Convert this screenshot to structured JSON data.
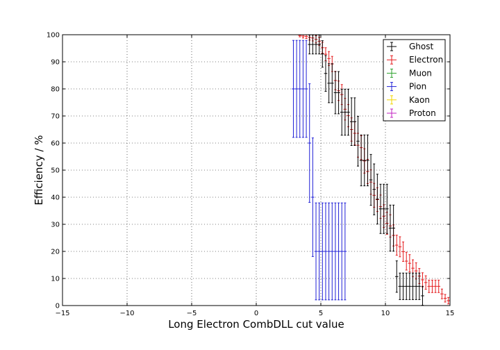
{
  "chart_data": {
    "type": "scatter",
    "title": "",
    "xlabel": "Long Electron CombDLL cut value",
    "ylabel": "Efficiency / %",
    "xlim": [
      -15,
      15
    ],
    "ylim": [
      0,
      100
    ],
    "xticks": [
      -15,
      -10,
      -5,
      0,
      5,
      10,
      15
    ],
    "xtick_labels": [
      "−15",
      "−10",
      "−5",
      "0",
      "5",
      "10",
      "15"
    ],
    "yticks": [
      0,
      10,
      20,
      30,
      40,
      50,
      60,
      70,
      80,
      90,
      100
    ],
    "ytick_labels": [
      "0",
      "10",
      "20",
      "30",
      "40",
      "50",
      "60",
      "70",
      "80",
      "90",
      "100"
    ],
    "grid": true,
    "legend_position": "top-right",
    "bin_width": 0.25,
    "series": [
      {
        "name": "Ghost",
        "color": "#000000",
        "x": [
          -14.875,
          -14.375,
          -13.875,
          -13.375,
          -12.875,
          -12.375,
          -11.875,
          -11.375,
          -10.875,
          -10.375,
          -9.875,
          -9.375,
          -8.875,
          -8.375,
          -7.875,
          -7.375,
          -6.875,
          -6.375,
          -5.875,
          -5.375,
          -4.875,
          -4.375,
          -3.875,
          -3.375,
          -2.875,
          -2.375,
          -1.875,
          -1.375,
          -0.875,
          -0.375,
          0.125,
          0.625,
          1.125,
          1.625,
          2.125,
          2.625,
          3.125,
          3.625,
          4.125,
          4.375,
          4.625,
          4.875,
          5.125,
          5.375,
          5.625,
          5.875,
          6.125,
          6.375,
          6.625,
          6.875,
          7.125,
          7.375,
          7.625,
          7.875,
          8.125,
          8.375,
          8.625,
          8.875,
          9.125,
          9.375,
          9.625,
          9.875,
          10.125,
          10.375,
          10.625,
          10.875,
          11.125,
          11.375,
          11.625,
          11.875,
          12.125,
          12.375,
          12.625,
          12.875,
          13.125
        ],
        "y": [
          100,
          100,
          100,
          100,
          100,
          100,
          100,
          100,
          100,
          100,
          100,
          100,
          100,
          100,
          100,
          100,
          100,
          100,
          100,
          100,
          100,
          100,
          100,
          100,
          100,
          100,
          100,
          100,
          100,
          100,
          100,
          100,
          100,
          100,
          100,
          100,
          100,
          100,
          96.4,
          96.4,
          96.4,
          96.4,
          92.9,
          85.7,
          82.1,
          82.1,
          78.6,
          78.6,
          71.4,
          71.4,
          71.4,
          67.9,
          67.9,
          60.7,
          53.6,
          53.6,
          53.6,
          46.4,
          42.9,
          39.3,
          35.7,
          35.7,
          35.7,
          28.6,
          28.6,
          10.7,
          7.1,
          7.1,
          7.1,
          7.1,
          7.1,
          7.1,
          7.1,
          3.6,
          0
        ],
        "err": [
          0,
          0,
          0,
          0,
          0,
          0,
          0,
          0,
          0,
          0,
          0,
          0,
          0,
          0,
          0,
          0,
          0,
          0,
          0,
          0,
          0,
          0,
          0,
          0,
          0,
          0,
          0,
          0,
          0,
          0,
          0,
          0,
          0,
          0,
          0,
          0,
          0,
          0,
          3.5,
          3.5,
          3.5,
          3.5,
          4.9,
          6.6,
          7.2,
          7.2,
          7.8,
          7.8,
          8.5,
          8.5,
          8.5,
          8.8,
          8.8,
          9.2,
          9.4,
          9.4,
          9.4,
          9.4,
          9.4,
          9.2,
          9.1,
          9.1,
          9.1,
          8.5,
          8.5,
          5.8,
          4.9,
          4.9,
          4.9,
          4.9,
          4.9,
          4.9,
          4.9,
          3.5,
          0
        ]
      },
      {
        "name": "Electron",
        "color": "#e41a1c",
        "x": [
          -14.875,
          -14.375,
          -13.875,
          -13.375,
          -12.875,
          -12.375,
          -11.875,
          -11.375,
          -10.875,
          -10.375,
          -9.875,
          -9.375,
          -8.875,
          -8.375,
          -7.875,
          -7.375,
          -6.875,
          -6.375,
          -5.875,
          -5.375,
          -4.875,
          -4.375,
          -3.875,
          -3.375,
          -2.875,
          -2.375,
          -1.875,
          -1.375,
          -0.875,
          -0.375,
          0.125,
          0.625,
          1.125,
          1.625,
          2.125,
          2.625,
          2.875,
          3.125,
          3.375,
          3.625,
          3.875,
          4.125,
          4.375,
          4.625,
          4.875,
          5.125,
          5.375,
          5.625,
          5.875,
          6.125,
          6.375,
          6.625,
          6.875,
          7.125,
          7.375,
          7.625,
          7.875,
          8.125,
          8.375,
          8.625,
          8.875,
          9.125,
          9.375,
          9.625,
          9.875,
          10.125,
          10.375,
          10.625,
          10.875,
          11.125,
          11.375,
          11.625,
          11.875,
          12.125,
          12.375,
          12.625,
          12.875,
          13.125,
          13.375,
          13.625,
          13.875,
          14.125,
          14.375,
          14.625,
          14.875
        ],
        "y": [
          100,
          100,
          100,
          100,
          100,
          100,
          100,
          100,
          100,
          100,
          100,
          100,
          100,
          100,
          100,
          100,
          100,
          100,
          100,
          100,
          100,
          100,
          100,
          100,
          100,
          100,
          100,
          100,
          100,
          100,
          100,
          100,
          100,
          100,
          100,
          100,
          100,
          100,
          99.7,
          99.5,
          99.4,
          99.0,
          98.8,
          98.3,
          97.6,
          95.2,
          92.8,
          91.2,
          89.2,
          83.1,
          79.3,
          77.9,
          72.5,
          70.1,
          65.0,
          63.6,
          59.2,
          58.3,
          53.4,
          49.5,
          45.6,
          40.7,
          39.1,
          36.5,
          33.0,
          30.4,
          29.4,
          25.9,
          22.3,
          21.7,
          19.9,
          16.4,
          15.6,
          13.8,
          12.8,
          10.9,
          9.5,
          8.5,
          7.1,
          7.1,
          7.1,
          7.1,
          4.3,
          2.7,
          1.8
        ],
        "err": [
          0,
          0,
          0,
          0,
          0,
          0,
          0,
          0,
          0,
          0,
          0,
          0,
          0,
          0,
          0,
          0,
          0,
          0,
          0,
          0,
          0,
          0,
          0,
          0,
          0,
          0,
          0,
          0,
          0,
          0,
          0,
          0,
          0,
          0,
          0,
          0,
          0,
          0,
          0.5,
          0.7,
          0.8,
          1.0,
          1.1,
          1.3,
          1.5,
          2.0,
          2.4,
          2.6,
          2.8,
          3.4,
          3.6,
          3.7,
          4.0,
          4.1,
          4.3,
          4.3,
          4.4,
          4.4,
          4.5,
          4.5,
          4.5,
          4.4,
          4.4,
          4.3,
          4.2,
          4.1,
          4.1,
          3.9,
          3.7,
          3.7,
          3.6,
          3.3,
          3.2,
          3.1,
          3.0,
          2.8,
          2.6,
          2.5,
          2.3,
          2.3,
          2.3,
          2.3,
          1.8,
          1.4,
          1.2
        ]
      },
      {
        "name": "Muon",
        "color": "#2ca02c",
        "x": [],
        "y": [],
        "err": []
      },
      {
        "name": "Pion",
        "color": "#1f1fd6",
        "x": [
          -14.875,
          -14.375,
          -13.875,
          -13.375,
          -12.875,
          -12.375,
          -11.875,
          -11.375,
          -10.875,
          -10.375,
          -9.875,
          -9.375,
          -8.875,
          -8.375,
          -7.875,
          -7.375,
          -6.875,
          -6.375,
          -5.875,
          -5.375,
          -4.875,
          -4.375,
          -3.875,
          -3.375,
          -2.875,
          -2.375,
          -1.875,
          -1.375,
          -0.875,
          -0.375,
          0.125,
          0.625,
          1.125,
          1.625,
          2.125,
          2.625,
          2.875,
          3.125,
          3.375,
          3.625,
          3.875,
          4.125,
          4.375,
          4.625,
          4.875,
          5.125,
          5.375,
          5.625,
          5.875,
          6.125,
          6.375,
          6.625,
          6.875
        ],
        "y": [
          100,
          100,
          100,
          100,
          100,
          100,
          100,
          100,
          100,
          100,
          100,
          100,
          100,
          100,
          100,
          100,
          100,
          100,
          100,
          100,
          100,
          100,
          100,
          100,
          100,
          100,
          100,
          100,
          100,
          100,
          100,
          100,
          100,
          100,
          100,
          100,
          80,
          80,
          80,
          80,
          80,
          60,
          40,
          20,
          20,
          20,
          20,
          20,
          20,
          20,
          20,
          20,
          20
        ],
        "err": [
          0,
          0,
          0,
          0,
          0,
          0,
          0,
          0,
          0,
          0,
          0,
          0,
          0,
          0,
          0,
          0,
          0,
          0,
          0,
          0,
          0,
          0,
          0,
          0,
          0,
          0,
          0,
          0,
          0,
          0,
          0,
          0,
          0,
          0,
          0,
          0,
          17.9,
          17.9,
          17.9,
          17.9,
          17.9,
          21.9,
          21.9,
          17.9,
          17.9,
          17.9,
          17.9,
          17.9,
          17.9,
          17.9,
          17.9,
          17.9,
          17.9
        ]
      },
      {
        "name": "Kaon",
        "color": "#f2d600",
        "x": [],
        "y": [],
        "err": []
      },
      {
        "name": "Proton",
        "color": "#c020c0",
        "x": [],
        "y": [],
        "err": []
      }
    ]
  }
}
